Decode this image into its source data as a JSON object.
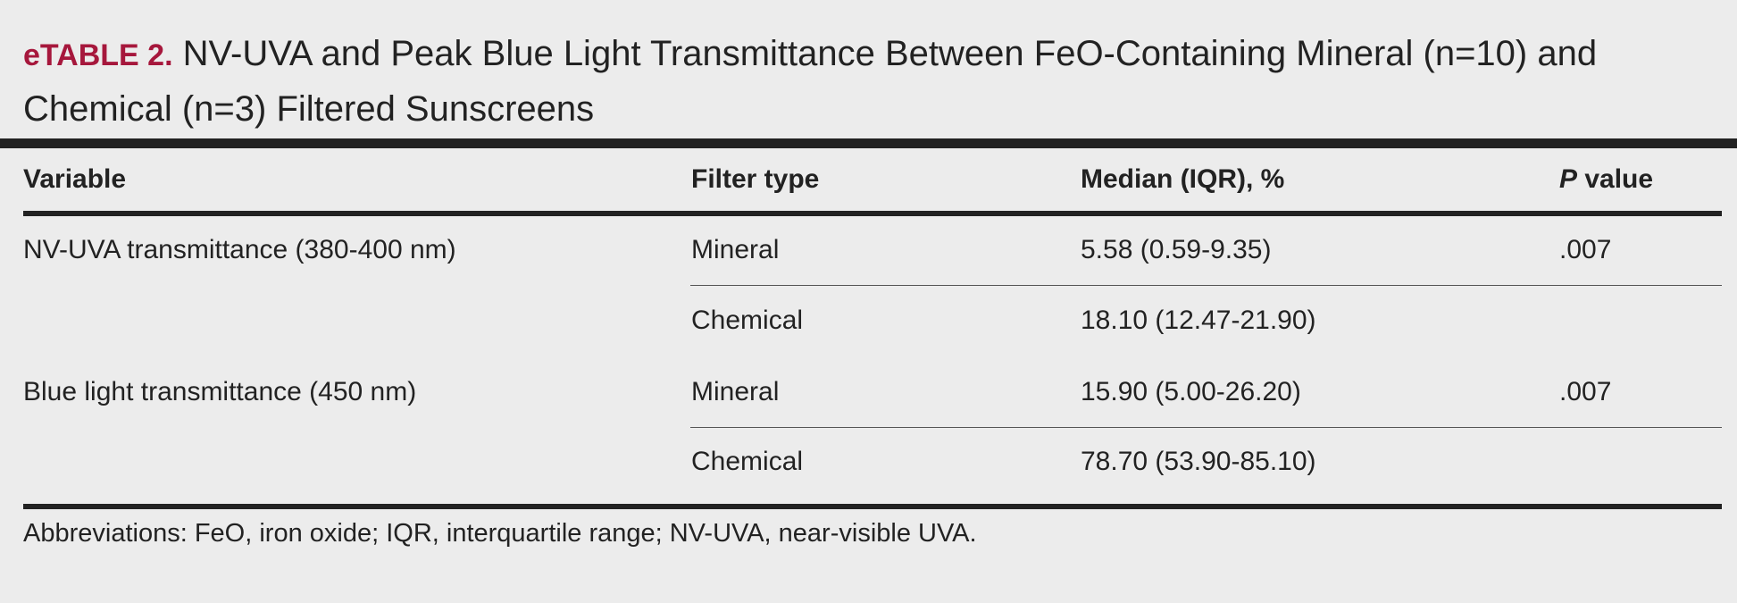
{
  "title": {
    "label": "eTABLE 2.",
    "text": "NV-UVA and Peak Blue Light Transmittance Between FeO-Containing Mineral (n=10) and Chemical (n=3) Filtered Sunscreens"
  },
  "table": {
    "headers": {
      "variable": "Variable",
      "filter_type": "Filter type",
      "median": "Median (IQR), %",
      "p_value_italic": "P",
      "p_value_rest": " value"
    },
    "rows": [
      {
        "variable": "NV-UVA transmittance (380-400 nm)",
        "filter_type": "Mineral",
        "median": "5.58 (0.59-9.35)",
        "p_value": ".007"
      },
      {
        "variable": "",
        "filter_type": "Chemical",
        "median": "18.10 (12.47-21.90)",
        "p_value": ""
      },
      {
        "variable": "Blue light transmittance (450 nm)",
        "filter_type": "Mineral",
        "median": "15.90 (5.00-26.20)",
        "p_value": ".007"
      },
      {
        "variable": "",
        "filter_type": "Chemical",
        "median": "78.70 (53.90-85.10)",
        "p_value": ""
      }
    ]
  },
  "footnote": "Abbreviations: FeO, iron oxide; IQR, interquartile range; NV-UVA, near-visible UVA.",
  "colors": {
    "accent": "#a6173c",
    "text": "#222222",
    "background": "#ececec"
  }
}
